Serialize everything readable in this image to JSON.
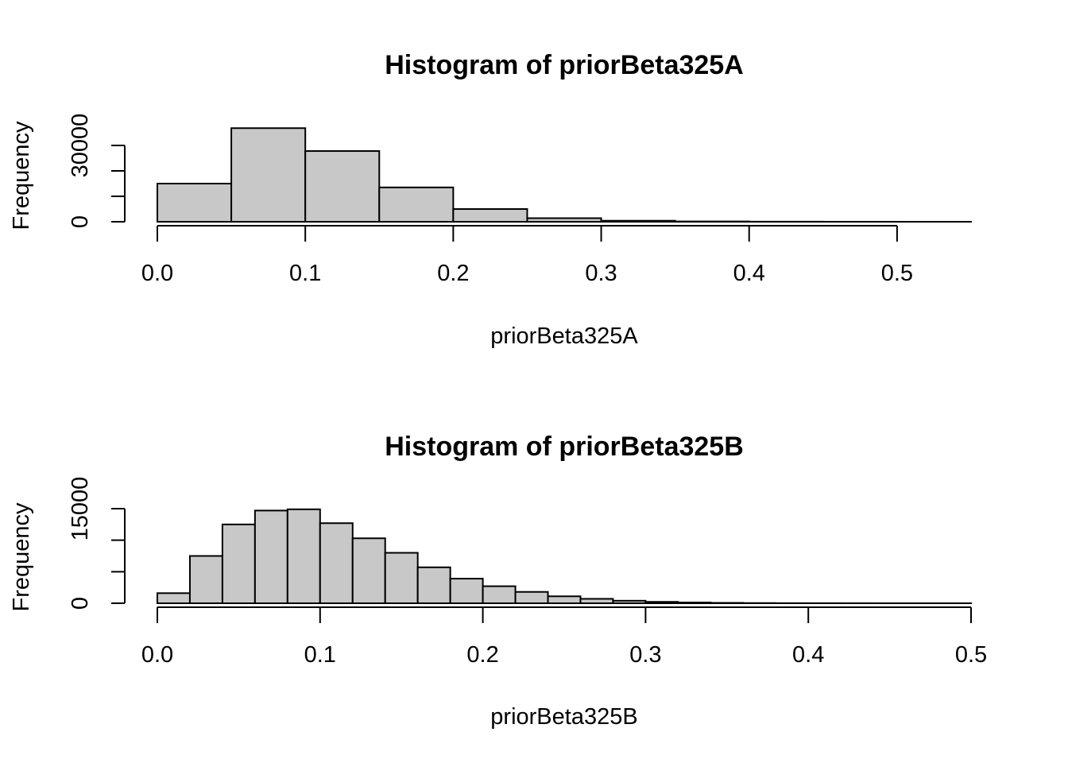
{
  "chart_data": [
    {
      "type": "bar",
      "title": "Histogram of priorBeta325A",
      "xlabel": "priorBeta325A",
      "ylabel": "Frequency",
      "bin_edges": [
        0.0,
        0.05,
        0.1,
        0.15,
        0.2,
        0.25,
        0.3,
        0.35,
        0.4,
        0.45,
        0.5,
        0.55
      ],
      "values": [
        15000,
        36800,
        27800,
        13500,
        5000,
        1400,
        400,
        120,
        40,
        10,
        3
      ],
      "xlim": [
        0.0,
        0.55
      ],
      "ylim": [
        0,
        30000
      ],
      "x_ticks": [
        "0.0",
        "0.1",
        "0.2",
        "0.3",
        "0.4",
        "0.5"
      ],
      "y_ticks": [
        "0",
        "30000"
      ],
      "y_minor_ticks": [
        10000,
        20000
      ],
      "bar_color": "#c8c8c8",
      "grid": false
    },
    {
      "type": "bar",
      "title": "Histogram of priorBeta325B",
      "xlabel": "priorBeta325B",
      "ylabel": "Frequency",
      "bin_edges": [
        0.0,
        0.02,
        0.04,
        0.06,
        0.08,
        0.1,
        0.12,
        0.14,
        0.16,
        0.18,
        0.2,
        0.22,
        0.24,
        0.26,
        0.28,
        0.3,
        0.32,
        0.34,
        0.36,
        0.38,
        0.4,
        0.42,
        0.44,
        0.46,
        0.48,
        0.5
      ],
      "values": [
        1600,
        7500,
        12500,
        14700,
        14900,
        12700,
        10300,
        8000,
        5700,
        3900,
        2700,
        1800,
        1100,
        700,
        400,
        220,
        120,
        60,
        30,
        15,
        8,
        4,
        2,
        1,
        1
      ],
      "xlim": [
        0.0,
        0.5
      ],
      "ylim": [
        0,
        15000
      ],
      "x_ticks": [
        "0.0",
        "0.1",
        "0.2",
        "0.3",
        "0.4",
        "0.5"
      ],
      "y_ticks": [
        "0",
        "15000"
      ],
      "y_minor_ticks": [
        5000,
        10000
      ],
      "bar_color": "#c8c8c8",
      "grid": false
    }
  ]
}
